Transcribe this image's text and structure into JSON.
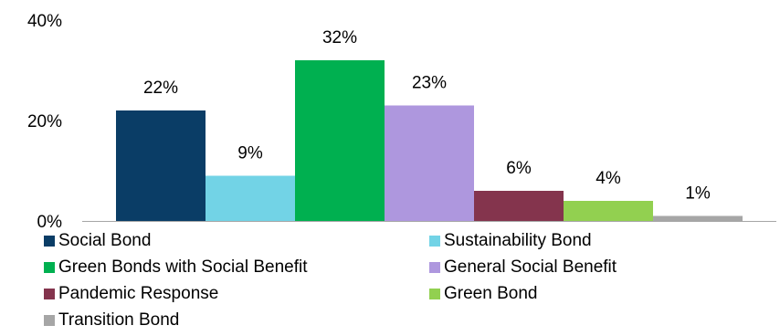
{
  "chart_data": {
    "type": "bar",
    "title": "",
    "xlabel": "",
    "ylabel": "",
    "ylim": [
      0,
      40
    ],
    "y_ticks": [
      "0%",
      "20%",
      "40%"
    ],
    "grid": false,
    "legend_position": "bottom",
    "series": [
      {
        "name": "Social Bond",
        "value": 22,
        "label": "22%",
        "color": "#0a3d66"
      },
      {
        "name": "Sustainability Bond",
        "value": 9,
        "label": "9%",
        "color": "#72d3e6"
      },
      {
        "name": "Green Bonds with Social Benefit",
        "value": 32,
        "label": "32%",
        "color": "#00b050"
      },
      {
        "name": "General Social Benefit",
        "value": 23,
        "label": "23%",
        "color": "#ae97de"
      },
      {
        "name": "Pandemic Response",
        "value": 6,
        "label": "6%",
        "color": "#84344d"
      },
      {
        "name": "Green Bond",
        "value": 4,
        "label": "4%",
        "color": "#92d050"
      },
      {
        "name": "Transition Bond",
        "value": 1,
        "label": "1%",
        "color": "#a6a6a6"
      }
    ]
  }
}
